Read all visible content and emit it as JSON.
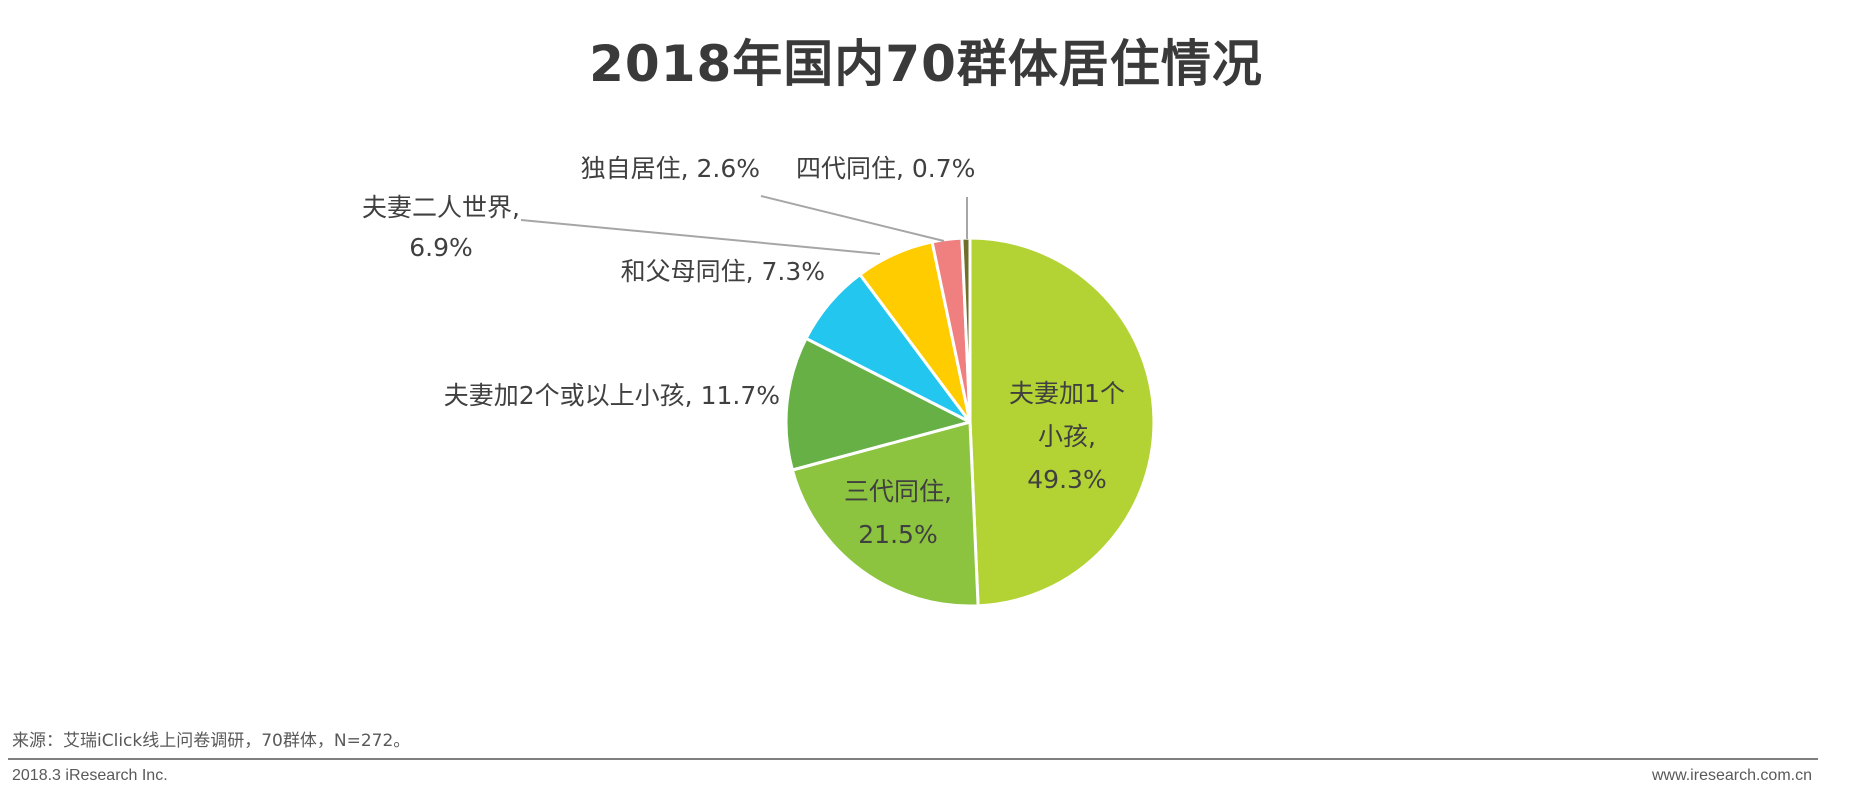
{
  "chart_data": {
    "type": "pie",
    "title": "2018年国内70群体居住情况",
    "start_angle_deg": 0,
    "direction": "clockwise",
    "slices": [
      {
        "label_lines": [
          "夫妻加1个",
          "小孩,",
          "49.3%"
        ],
        "name": "夫妻加1个小孩",
        "value": 49.3,
        "color": "#b3d334",
        "label_inside": true
      },
      {
        "label_lines": [
          "三代同住,",
          "21.5%"
        ],
        "name": "三代同住",
        "value": 21.5,
        "color": "#8cc43f",
        "label_inside": true
      },
      {
        "label_lines": [
          "夫妻加2个或以上小孩, 11.7%"
        ],
        "name": "夫妻加2个或以上小孩",
        "value": 11.7,
        "color": "#66b046",
        "label_inside": false
      },
      {
        "label_lines": [
          "和父母同住, 7.3%"
        ],
        "name": "和父母同住",
        "value": 7.3,
        "color": "#22c6ef",
        "label_inside": false
      },
      {
        "label_lines": [
          "夫妻二人世界,",
          "6.9%"
        ],
        "name": "夫妻二人世界",
        "value": 6.9,
        "color": "#ffcc00",
        "label_inside": false
      },
      {
        "label_lines": [
          "独自居住, 2.6%"
        ],
        "name": "独自居住",
        "value": 2.6,
        "color": "#f08080",
        "label_inside": false
      },
      {
        "label_lines": [
          "四代同住, 0.7%"
        ],
        "name": "四代同住",
        "value": 0.7,
        "color": "#6f6f2a",
        "label_inside": false
      }
    ]
  },
  "footer": {
    "source": "来源：艾瑞iClick线上问卷调研，70群体，N=272。",
    "left": "2018.3 iResearch Inc.",
    "right": "www.iresearch.com.cn"
  }
}
